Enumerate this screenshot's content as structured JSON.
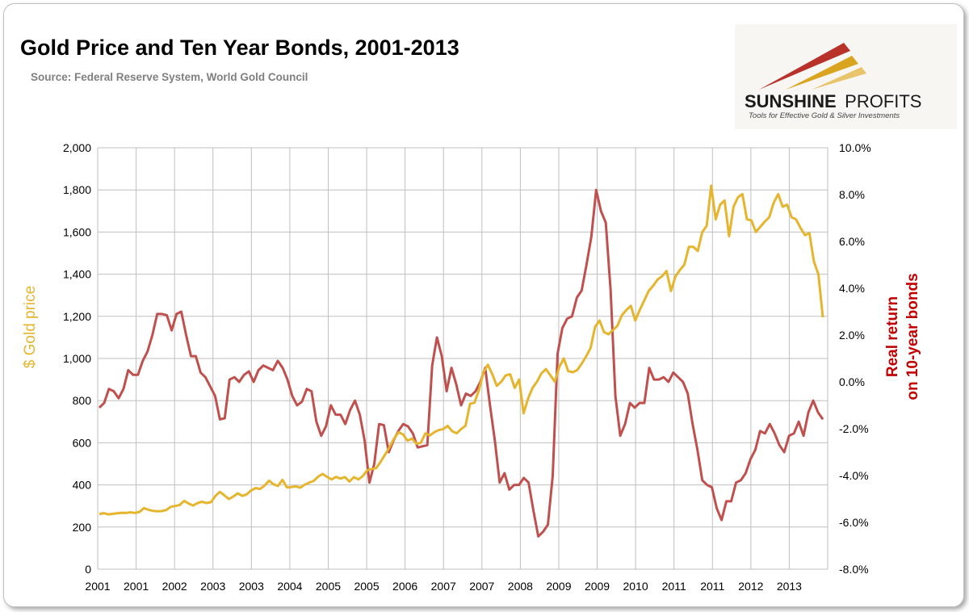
{
  "chart_data": {
    "type": "line",
    "title": "Gold Price and Ten Year Bonds, 2001-2013",
    "subtitle": "Source: Federal Reserve System, World Gold Council",
    "left_axis": {
      "label": "$ Gold price",
      "range": [
        0,
        2000
      ],
      "ticks": [
        "0",
        "200",
        "400",
        "600",
        "800",
        "1,000",
        "1,200",
        "1,400",
        "1,600",
        "1,800",
        "2,000"
      ]
    },
    "right_axis": {
      "label_line1": "Real return",
      "label_line2": "on 10-year bonds",
      "range": [
        -8.0,
        10.0
      ],
      "ticks": [
        "-8.0%",
        "-6.0%",
        "-4.0%",
        "-2.0%",
        "0.0%",
        "2.0%",
        "4.0%",
        "6.0%",
        "8.0%",
        "10.0%"
      ]
    },
    "x_ticks": [
      "2001",
      "2001",
      "2002",
      "2003",
      "2003",
      "2004",
      "2005",
      "2005",
      "2006",
      "2007",
      "2007",
      "2008",
      "2009",
      "2009",
      "2010",
      "2011",
      "2011",
      "2012",
      "2013"
    ],
    "grid": true,
    "colors": {
      "gold": "#e5b52e",
      "bonds": "#c0504d",
      "grid": "#bfbfbf"
    },
    "series": [
      {
        "axis": "left",
        "values": [
          262,
          266,
          260,
          263,
          265,
          268,
          267,
          270,
          267,
          272,
          290,
          282,
          277,
          275,
          276,
          281,
          296,
          300,
          305,
          324,
          312,
          302,
          314,
          320,
          314,
          318,
          348,
          367,
          350,
          333,
          345,
          360,
          348,
          355,
          374,
          385,
          381,
          397,
          420,
          403,
          395,
          424,
          388,
          390,
          393,
          387,
          401,
          411,
          419,
          439,
          452,
          438,
          426,
          438,
          430,
          437,
          416,
          437,
          426,
          442,
          470,
          475,
          480,
          510,
          545,
          580,
          620,
          650,
          640,
          610,
          620,
          595,
          600,
          645,
          635,
          650,
          660,
          665,
          680,
          655,
          645,
          665,
          681,
          785,
          790,
          850,
          935,
          970,
          925,
          870,
          890,
          920,
          925,
          860,
          900,
          740,
          810,
          860,
          890,
          930,
          950,
          920,
          890,
          960,
          1000,
          940,
          935,
          945,
          975,
          1010,
          1050,
          1150,
          1180,
          1125,
          1115,
          1135,
          1155,
          1205,
          1230,
          1250,
          1180,
          1230,
          1275,
          1320,
          1345,
          1375,
          1390,
          1415,
          1320,
          1390,
          1420,
          1445,
          1530,
          1530,
          1510,
          1600,
          1630,
          1820,
          1660,
          1730,
          1750,
          1580,
          1720,
          1765,
          1780,
          1660,
          1655,
          1600,
          1625,
          1650,
          1670,
          1740,
          1780,
          1720,
          1730,
          1670,
          1660,
          1620,
          1585,
          1595,
          1460,
          1400,
          1195
        ]
      },
      {
        "axis": "right",
        "values": [
          -1.1,
          -0.9,
          -0.3,
          -0.4,
          -0.7,
          -0.3,
          0.5,
          0.3,
          0.3,
          0.9,
          1.3,
          2.0,
          2.9,
          2.9,
          2.85,
          2.2,
          2.9,
          3.0,
          2.0,
          1.1,
          1.1,
          0.4,
          0.2,
          -0.2,
          -0.6,
          -1.6,
          -1.55,
          0.1,
          0.2,
          0.0,
          0.3,
          0.45,
          0.0,
          0.5,
          0.7,
          0.6,
          0.5,
          0.9,
          0.6,
          0.1,
          -0.6,
          -1.0,
          -0.85,
          -0.3,
          -0.4,
          -1.7,
          -2.3,
          -1.9,
          -1.0,
          -1.4,
          -1.4,
          -1.8,
          -1.2,
          -0.8,
          -1.4,
          -2.5,
          -4.3,
          -3.5,
          -1.8,
          -1.85,
          -3.0,
          -2.5,
          -2.1,
          -1.8,
          -1.9,
          -2.2,
          -2.8,
          -2.75,
          -2.7,
          0.7,
          1.9,
          1.1,
          -0.4,
          0.6,
          -0.1,
          -1.0,
          -0.5,
          -0.6,
          -0.4,
          0.0,
          0.6,
          -1.0,
          -2.5,
          -4.3,
          -3.9,
          -4.6,
          -4.4,
          -4.4,
          -4.1,
          -4.3,
          -5.5,
          -6.6,
          -6.4,
          -6.1,
          -4.0,
          1.2,
          2.3,
          2.7,
          2.8,
          3.6,
          3.9,
          5.0,
          6.2,
          8.2,
          7.3,
          6.8,
          3.9,
          -0.6,
          -2.3,
          -1.8,
          -0.9,
          -1.1,
          -0.9,
          -0.9,
          0.6,
          0.1,
          0.1,
          0.2,
          0.0,
          0.4,
          0.2,
          0.0,
          -0.5,
          -1.8,
          -2.9,
          -4.2,
          -4.4,
          -4.5,
          -5.4,
          -5.9,
          -5.1,
          -5.1,
          -4.3,
          -4.2,
          -3.9,
          -3.3,
          -2.9,
          -2.1,
          -2.2,
          -1.8,
          -2.2,
          -2.7,
          -3.0,
          -2.3,
          -2.2,
          -1.7,
          -2.3,
          -1.3,
          -0.8,
          -1.3,
          -1.6
        ]
      }
    ]
  },
  "logo": {
    "name_bold": "SUNSHINE",
    "name_light": "PROFITS",
    "tagline": "Tools for Effective Gold & Silver Investments",
    "colors": {
      "red": "#b8322a",
      "gold": "#d9a520",
      "dark": "#1a1a1a"
    }
  }
}
